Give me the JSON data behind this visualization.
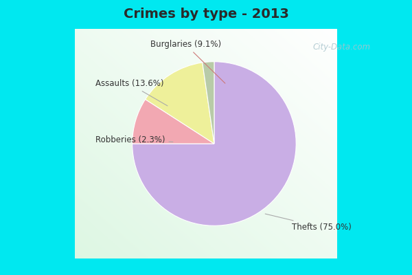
{
  "title": "Crimes by type - 2013",
  "plot_values": [
    75.0,
    9.1,
    13.6,
    2.3
  ],
  "plot_colors": [
    "#c9aee5",
    "#f2a8b2",
    "#eef09a",
    "#b8cba8"
  ],
  "label_texts": [
    "Thefts (75.0%)",
    "Burglaries (9.1%)",
    "Assaults (13.6%)",
    "Robberies (2.3%)"
  ],
  "background_cyan": "#00e8f0",
  "title_color": "#2a2a2a",
  "title_fontsize": 14,
  "label_fontsize": 8.5,
  "watermark": "City-Data.com",
  "watermark_color": "#a8c4cc",
  "title_bar_height": 0.1
}
